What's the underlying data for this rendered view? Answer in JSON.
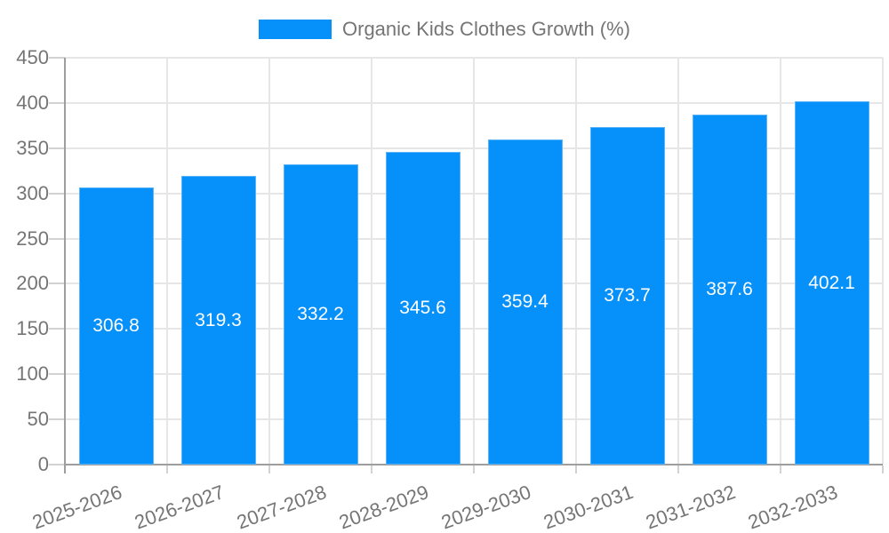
{
  "legend": {
    "label": "Organic Kids Clothes Growth (%)"
  },
  "colors": {
    "bar": "#0590fa",
    "bar_border": "#5cb4f8",
    "grid": "#e6e6e6",
    "axis": "#9e9e9e",
    "tickmark": "#d2d2d2",
    "text": "#757575",
    "value_label": "#ffffff",
    "background": "#ffffff"
  },
  "chart_data": {
    "type": "bar",
    "title": "Organic Kids Clothes Growth (%)",
    "categories": [
      "2025-2026",
      "2026-2027",
      "2027-2028",
      "2028-2029",
      "2029-2030",
      "2030-2031",
      "2031-2032",
      "2032-2033"
    ],
    "series": [
      {
        "name": "Organic Kids Clothes Growth (%)",
        "values": [
          306.8,
          319.3,
          332.2,
          345.6,
          359.4,
          373.7,
          387.6,
          402.1
        ]
      }
    ],
    "bar_value_labels": [
      "306.8",
      "319.3",
      "332.2",
      "345.6",
      "359.4",
      "373.7",
      "387.6",
      "402.1"
    ],
    "xlabel": "",
    "ylabel": "",
    "ylim": [
      0,
      450
    ],
    "yticks": [
      0,
      50,
      100,
      150,
      200,
      250,
      300,
      350,
      400,
      450
    ],
    "grid": true,
    "legend_position": "top",
    "x_label_rotation_deg": -20
  }
}
